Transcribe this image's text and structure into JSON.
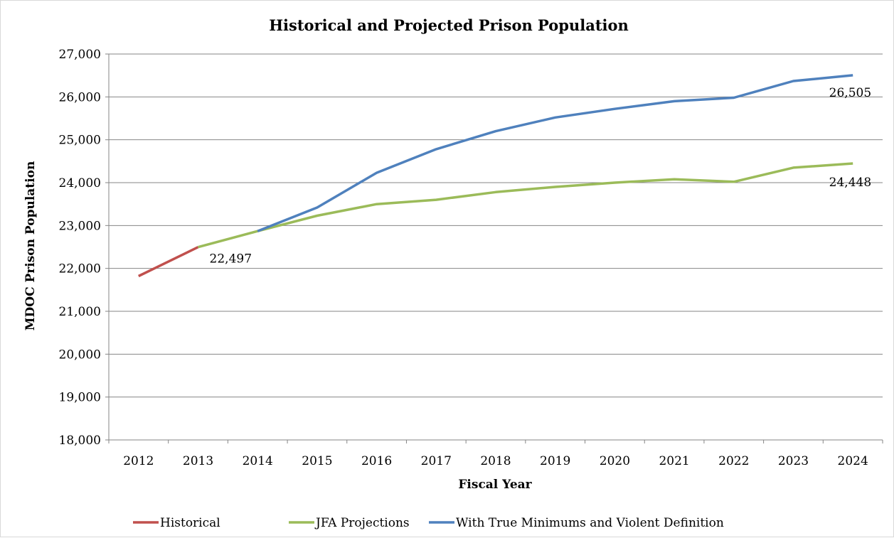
{
  "chart_data": {
    "type": "line",
    "title": "Historical and Projected Prison Population",
    "xlabel": "Fiscal Year",
    "ylabel": "MDOC Prison Population",
    "ylim": [
      18000,
      27000
    ],
    "yticks": [
      18000,
      19000,
      20000,
      21000,
      22000,
      23000,
      24000,
      25000,
      26000,
      27000
    ],
    "ytick_labels": [
      "18,000",
      "19,000",
      "20,000",
      "21,000",
      "22,000",
      "23,000",
      "24,000",
      "25,000",
      "26,000",
      "27,000"
    ],
    "categories": [
      "2012",
      "2013",
      "2014",
      "2015",
      "2016",
      "2017",
      "2018",
      "2019",
      "2020",
      "2021",
      "2022",
      "2023",
      "2024"
    ],
    "grid": true,
    "legend_position": "bottom",
    "series": [
      {
        "name": "Historical",
        "color": "#C0504D",
        "values": [
          21820,
          22497,
          null,
          null,
          null,
          null,
          null,
          null,
          null,
          null,
          null,
          null,
          null
        ]
      },
      {
        "name": "JFA Projections",
        "color": "#9BBB59",
        "values": [
          null,
          22497,
          22870,
          23230,
          23500,
          23600,
          23780,
          23900,
          24000,
          24080,
          24020,
          24350,
          24448
        ]
      },
      {
        "name": "With True Minimums and Violent Definition",
        "color": "#4F81BD",
        "values": [
          null,
          null,
          22870,
          23420,
          24230,
          24780,
          25200,
          25520,
          25720,
          25900,
          25980,
          26370,
          26505
        ]
      }
    ],
    "annotations": [
      {
        "text": "22,497",
        "category": "2013",
        "value": 22497
      },
      {
        "text": "24,448",
        "category": "2024",
        "value": 24448
      },
      {
        "text": "26,505",
        "category": "2024",
        "value": 26505
      }
    ]
  }
}
